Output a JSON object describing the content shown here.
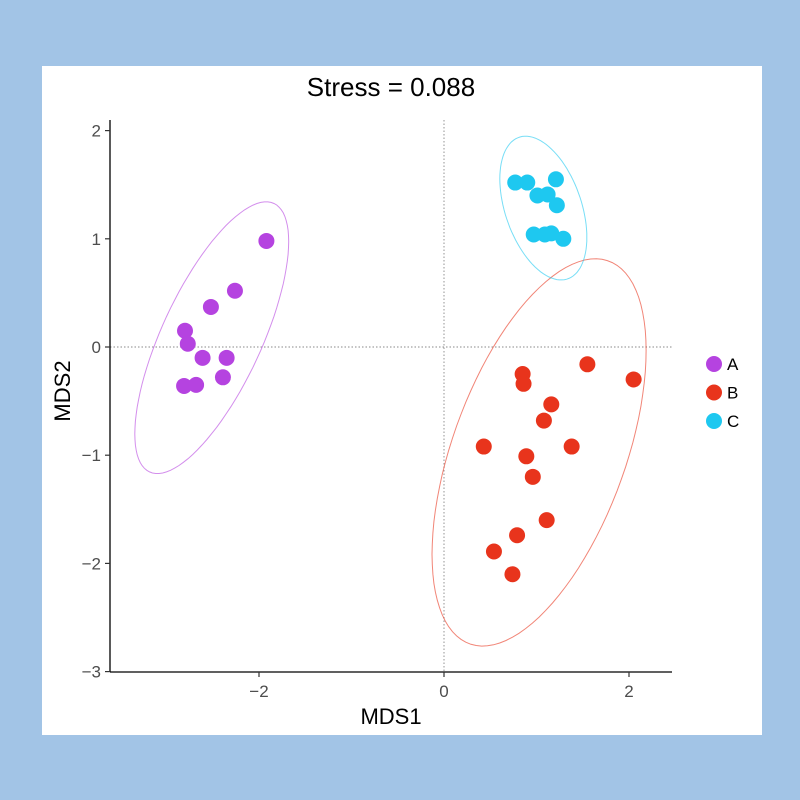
{
  "chart_data": {
    "type": "scatter",
    "title": "Stress = 0.088",
    "xlabel": "MDS1",
    "ylabel": "MDS2",
    "xlim": [
      -3.6,
      2.45
    ],
    "ylim": [
      -3.0,
      2.2
    ],
    "xticks": [
      -2,
      0,
      2
    ],
    "yticks": [
      -3,
      -2,
      -1,
      0,
      1,
      2
    ],
    "xtick_labels": [
      "−2",
      "0",
      "2"
    ],
    "ytick_labels": [
      "−3",
      "−2",
      "−1",
      "0",
      "1",
      "2"
    ],
    "reference_lines": {
      "x": 0,
      "y": 0,
      "style": "dotted"
    },
    "ellipses": true,
    "grid": false,
    "legend_position": "right",
    "series": [
      {
        "name": "A",
        "color": "#b543e0",
        "points": [
          [
            -1.92,
            0.98
          ],
          [
            -2.26,
            0.52
          ],
          [
            -2.52,
            0.37
          ],
          [
            -2.8,
            0.15
          ],
          [
            -2.77,
            0.03
          ],
          [
            -2.61,
            -0.1
          ],
          [
            -2.35,
            -0.1
          ],
          [
            -2.39,
            -0.28
          ],
          [
            -2.81,
            -0.36
          ],
          [
            -2.68,
            -0.35
          ]
        ]
      },
      {
        "name": "B",
        "color": "#e8341c",
        "points": [
          [
            0.85,
            -0.25
          ],
          [
            0.86,
            -0.34
          ],
          [
            1.55,
            -0.16
          ],
          [
            2.05,
            -0.3
          ],
          [
            1.16,
            -0.53
          ],
          [
            1.08,
            -0.68
          ],
          [
            0.43,
            -0.92
          ],
          [
            0.89,
            -1.01
          ],
          [
            1.38,
            -0.92
          ],
          [
            0.96,
            -1.2
          ],
          [
            1.11,
            -1.6
          ],
          [
            0.79,
            -1.74
          ],
          [
            0.54,
            -1.89
          ],
          [
            0.74,
            -2.1
          ]
        ]
      },
      {
        "name": "C",
        "color": "#1ec8f0",
        "points": [
          [
            0.77,
            1.52
          ],
          [
            0.9,
            1.52
          ],
          [
            1.21,
            1.55
          ],
          [
            1.01,
            1.4
          ],
          [
            1.12,
            1.41
          ],
          [
            1.22,
            1.31
          ],
          [
            0.97,
            1.04
          ],
          [
            1.09,
            1.04
          ],
          [
            1.16,
            1.05
          ],
          [
            1.29,
            1.0
          ]
        ]
      }
    ]
  }
}
